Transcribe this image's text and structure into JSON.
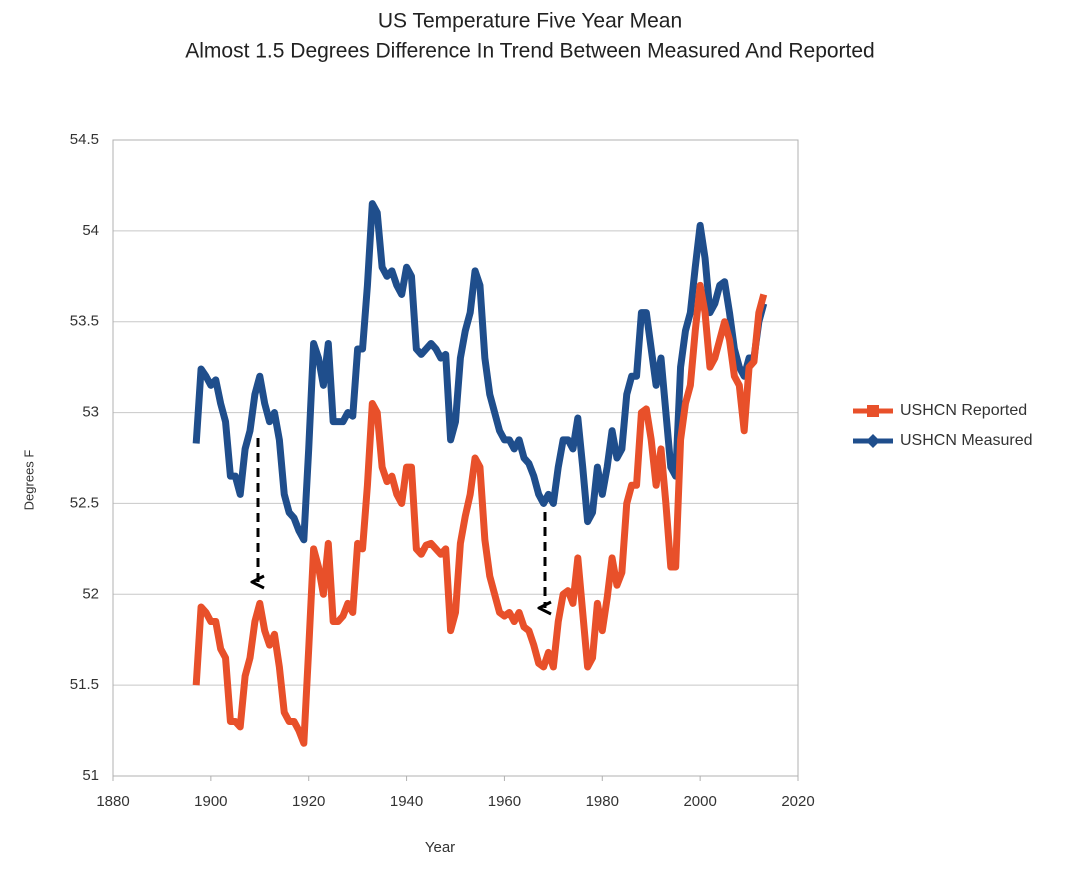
{
  "chart_data": {
    "type": "line",
    "title": "US Temperature Five Year Mean",
    "subtitle": "Almost 1.5 Degrees Difference In Trend Between Measured And Reported",
    "x_label": "Year",
    "y_label": "Degrees F",
    "x": [
      1897,
      1898,
      1899,
      1900,
      1901,
      1902,
      1903,
      1904,
      1905,
      1906,
      1907,
      1908,
      1909,
      1910,
      1911,
      1912,
      1913,
      1914,
      1915,
      1916,
      1917,
      1918,
      1919,
      1920,
      1921,
      1922,
      1923,
      1924,
      1925,
      1926,
      1927,
      1928,
      1929,
      1930,
      1931,
      1932,
      1933,
      1934,
      1935,
      1936,
      1937,
      1938,
      1939,
      1940,
      1941,
      1942,
      1943,
      1944,
      1945,
      1946,
      1947,
      1948,
      1949,
      1950,
      1951,
      1952,
      1953,
      1954,
      1955,
      1956,
      1957,
      1958,
      1959,
      1960,
      1961,
      1962,
      1963,
      1964,
      1965,
      1966,
      1967,
      1968,
      1969,
      1970,
      1971,
      1972,
      1973,
      1974,
      1975,
      1976,
      1977,
      1978,
      1979,
      1980,
      1981,
      1982,
      1983,
      1984,
      1985,
      1986,
      1987,
      1988,
      1989,
      1990,
      1991,
      1992,
      1993,
      1994,
      1995,
      1996,
      1997,
      1998,
      1999,
      2000,
      2001,
      2002,
      2003,
      2004,
      2005,
      2006,
      2007,
      2008,
      2009,
      2010,
      2011,
      2012,
      2013
    ],
    "series": [
      {
        "name": "USHCN Measured",
        "color": "#1f4e8c",
        "values": [
          52.83,
          53.24,
          53.2,
          53.15,
          53.18,
          53.05,
          52.95,
          52.65,
          52.65,
          52.55,
          52.8,
          52.9,
          53.1,
          53.2,
          53.05,
          52.95,
          53.0,
          52.85,
          52.55,
          52.45,
          52.42,
          52.35,
          52.3,
          52.8,
          53.38,
          53.3,
          53.15,
          53.38,
          52.95,
          52.95,
          52.95,
          53.0,
          52.98,
          53.35,
          53.35,
          53.7,
          54.15,
          54.1,
          53.8,
          53.75,
          53.78,
          53.7,
          53.65,
          53.8,
          53.75,
          53.35,
          53.32,
          53.35,
          53.38,
          53.35,
          53.3,
          53.32,
          52.85,
          52.95,
          53.3,
          53.45,
          53.55,
          53.78,
          53.7,
          53.3,
          53.1,
          53.0,
          52.9,
          52.85,
          52.85,
          52.8,
          52.85,
          52.75,
          52.72,
          52.65,
          52.55,
          52.5,
          52.55,
          52.5,
          52.7,
          52.85,
          52.85,
          52.8,
          52.97,
          52.7,
          52.4,
          52.45,
          52.7,
          52.55,
          52.7,
          52.9,
          52.75,
          52.8,
          53.1,
          53.2,
          53.2,
          53.55,
          53.55,
          53.35,
          53.15,
          53.3,
          53.0,
          52.7,
          52.65,
          53.25,
          53.45,
          53.55,
          53.8,
          54.03,
          53.85,
          53.55,
          53.6,
          53.7,
          53.72,
          53.55,
          53.35,
          53.25,
          53.2,
          53.3,
          53.3,
          53.5,
          53.6
        ]
      },
      {
        "name": "USHCN Reported",
        "color": "#e8502a",
        "values": [
          51.5,
          51.93,
          51.9,
          51.85,
          51.85,
          51.7,
          51.65,
          51.3,
          51.3,
          51.27,
          51.55,
          51.65,
          51.85,
          51.95,
          51.8,
          51.72,
          51.78,
          51.6,
          51.35,
          51.3,
          51.3,
          51.25,
          51.18,
          51.7,
          52.25,
          52.15,
          52.0,
          52.28,
          51.85,
          51.85,
          51.88,
          51.95,
          51.9,
          52.28,
          52.25,
          52.6,
          53.05,
          53.0,
          52.7,
          52.62,
          52.65,
          52.55,
          52.5,
          52.7,
          52.7,
          52.25,
          52.22,
          52.27,
          52.28,
          52.25,
          52.22,
          52.25,
          51.8,
          51.9,
          52.28,
          52.43,
          52.55,
          52.75,
          52.7,
          52.3,
          52.1,
          52.0,
          51.9,
          51.88,
          51.9,
          51.85,
          51.9,
          51.82,
          51.8,
          51.72,
          51.62,
          51.6,
          51.68,
          51.6,
          51.85,
          52.0,
          52.02,
          51.95,
          52.2,
          51.9,
          51.6,
          51.65,
          51.95,
          51.8,
          51.98,
          52.2,
          52.05,
          52.12,
          52.5,
          52.6,
          52.6,
          53.0,
          53.02,
          52.85,
          52.6,
          52.8,
          52.5,
          52.15,
          52.15,
          52.85,
          53.05,
          53.15,
          53.45,
          53.7,
          53.55,
          53.25,
          53.3,
          53.4,
          53.5,
          53.4,
          53.2,
          53.15,
          52.9,
          53.25,
          53.28,
          53.55,
          53.65
        ]
      }
    ],
    "legend_order": [
      1,
      0
    ],
    "legend_position": "right",
    "xlim": [
      1880,
      2020
    ],
    "xticks": [
      1880,
      1900,
      1920,
      1940,
      1960,
      1980,
      2000,
      2020
    ],
    "ylim": [
      51,
      54.5
    ],
    "yticks": [
      51,
      51.5,
      52,
      52.5,
      53,
      53.5,
      54,
      54.5
    ],
    "grid": true
  }
}
